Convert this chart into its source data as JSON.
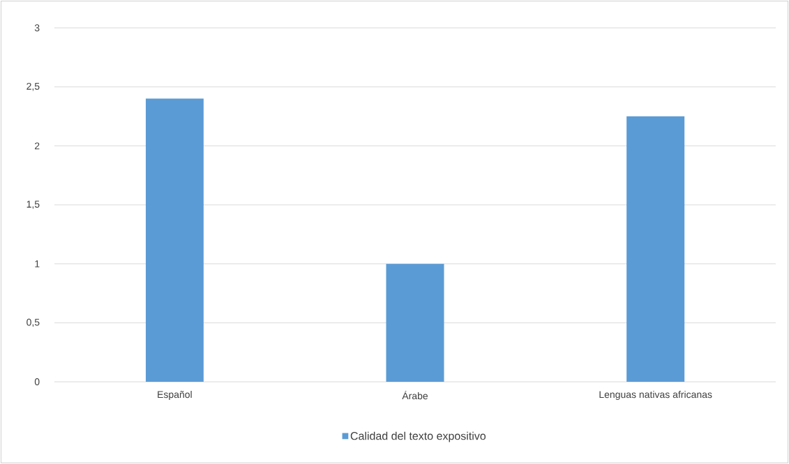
{
  "chart_data": {
    "type": "bar",
    "categories": [
      "Español",
      "Árabe",
      "Lenguas nativas africanas"
    ],
    "series": [
      {
        "name": "Calidad  del texto expositivo",
        "color": "#5b9bd5",
        "values": [
          2.4,
          1,
          2.25
        ]
      }
    ],
    "ylim": [
      0,
      3
    ],
    "yticks": [
      0,
      {
        "value": 0.5,
        "label": "0,5"
      },
      1,
      {
        "value": 1.5,
        "label": "1,5"
      },
      2,
      {
        "value": 2.5,
        "label": "2,5"
      },
      3
    ],
    "grid": "y",
    "legend": "bottom"
  }
}
